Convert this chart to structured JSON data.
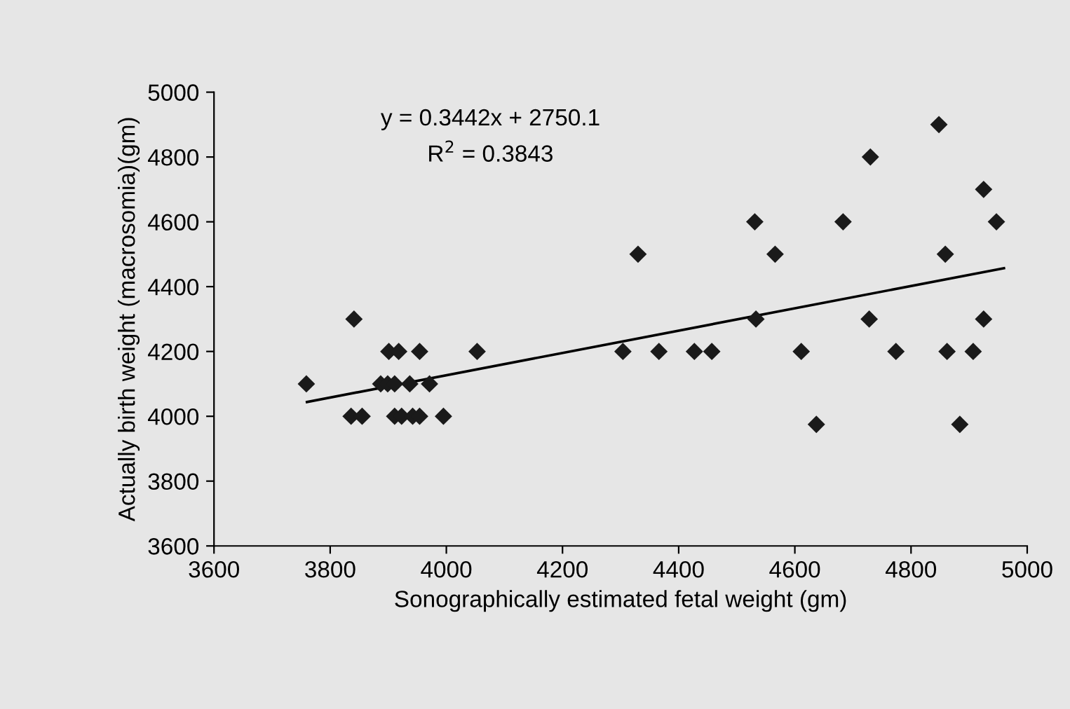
{
  "chart_data": {
    "type": "scatter",
    "xlabel": "Sonographically estimated fetal weight (gm)",
    "ylabel": "Actually birth weight (macrosomia)(gm)",
    "annotations": [
      "y = 0.3442x + 2750.1",
      "R$^{2}$ = 0.3843"
    ],
    "xlim": [
      3600,
      5000
    ],
    "xticks": [
      3600,
      3800,
      4000,
      4200,
      4400,
      4600,
      4800,
      5000
    ],
    "ylim": [
      3600,
      5000
    ],
    "yticks": [
      3600,
      3800,
      4000,
      4200,
      4400,
      4600,
      4800,
      5000
    ],
    "grid": false,
    "legend": false,
    "series": [
      {
        "marker": "diamond",
        "color": "#1a1a1a",
        "x": [
          3759,
          3841,
          3836,
          3855,
          3901,
          3918,
          3887,
          3899,
          3911,
          3937,
          3971,
          3911,
          3923,
          3942,
          3954,
          3995,
          3954,
          4053,
          4304,
          4330,
          4366,
          4427,
          4457,
          4531,
          4533,
          4566,
          4611,
          4637,
          4683,
          4728,
          4730,
          4774,
          4848,
          4859,
          4862,
          4884,
          4907,
          4925,
          4925,
          4947
        ],
        "values": [
          4100,
          4300,
          4000,
          4000,
          4200,
          4200,
          4100,
          4100,
          4100,
          4100,
          4100,
          4000,
          4000,
          4000,
          4000,
          4000,
          4200,
          4200,
          4200,
          4500,
          4200,
          4200,
          4200,
          4600,
          4300,
          4500,
          4200,
          3975,
          4600,
          4300,
          4800,
          4200,
          4900,
          4500,
          4200,
          3975,
          4200,
          4300,
          4700,
          4600
        ]
      },
      {
        "type": "line",
        "color": "#000000",
        "marker": "none",
        "line_style": "solid",
        "x": [
          3760,
          4960
        ],
        "values": [
          4044,
          4457
        ]
      }
    ]
  }
}
